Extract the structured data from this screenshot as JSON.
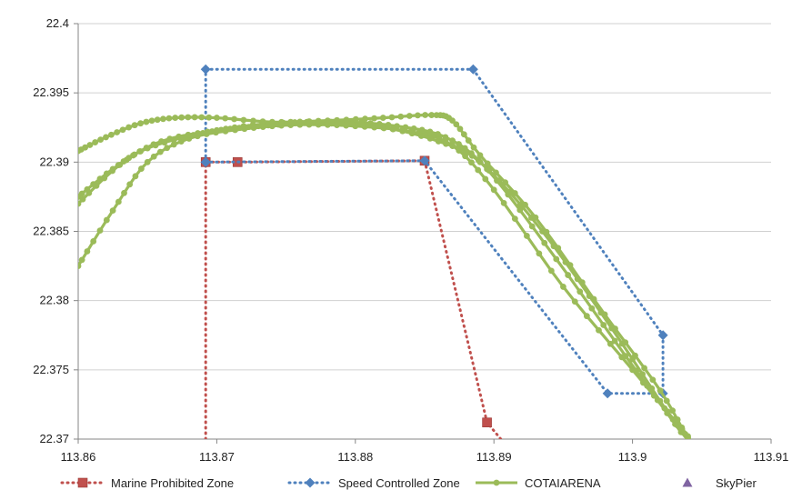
{
  "chart_data": {
    "type": "line",
    "title": "",
    "xlabel": "",
    "ylabel": "",
    "xlim": [
      113.86,
      113.91
    ],
    "ylim": [
      22.37,
      22.4
    ],
    "x_ticks": [
      113.86,
      113.87,
      113.88,
      113.89,
      113.9,
      113.91
    ],
    "x_tick_labels": [
      "113.86",
      "113.87",
      "113.88",
      "113.89",
      "113.9",
      "113.91"
    ],
    "y_ticks": [
      22.37,
      22.375,
      22.38,
      22.385,
      22.39,
      22.395,
      22.4
    ],
    "y_tick_labels": [
      "22.37",
      "22.375",
      "22.38",
      "22.385",
      "22.39",
      "22.395",
      "22.4"
    ],
    "grid": "horizontal",
    "legend_position": "bottom",
    "series": [
      {
        "name": "Marine Prohibited Zone",
        "color": "#c0504d",
        "line": "dotted",
        "marker": "square",
        "points": [
          [
            113.8692,
            22.37
          ],
          [
            113.8692,
            22.39
          ],
          [
            113.8715,
            22.39
          ],
          [
            113.885,
            22.3901
          ],
          [
            113.8895,
            22.3712
          ],
          [
            113.8905,
            22.37
          ]
        ],
        "marker_points": [
          [
            113.8692,
            22.39
          ],
          [
            113.8715,
            22.39
          ],
          [
            113.885,
            22.3901
          ],
          [
            113.8895,
            22.3712
          ]
        ]
      },
      {
        "name": "Speed Controlled Zone",
        "color": "#4f81bd",
        "line": "dotted",
        "marker": "diamond",
        "points": [
          [
            113.8692,
            22.39
          ],
          [
            113.8692,
            22.3967
          ],
          [
            113.8885,
            22.3967
          ],
          [
            113.9022,
            22.3775
          ],
          [
            113.9022,
            22.3733
          ],
          [
            113.8982,
            22.3733
          ],
          [
            113.885,
            22.3901
          ],
          [
            113.8692,
            22.39
          ]
        ]
      },
      {
        "name": "COTAIARENA",
        "color": "#9bbb59",
        "line": "solid",
        "marker": "circle",
        "tracks": [
          [
            [
              113.86,
              22.3825
            ],
            [
              113.8625,
              22.3865
            ],
            [
              113.865,
              22.39
            ],
            [
              113.868,
              22.3917
            ],
            [
              113.872,
              22.3924
            ],
            [
              113.876,
              22.3927
            ],
            [
              113.88,
              22.3926
            ],
            [
              113.884,
              22.3922
            ],
            [
              113.887,
              22.3912
            ],
            [
              113.89,
              22.388
            ],
            [
              113.895,
              22.381
            ],
            [
              113.9,
              22.375
            ],
            [
              113.904,
              22.3702
            ]
          ],
          [
            [
              113.86,
              22.387
            ],
            [
              113.863,
              22.3898
            ],
            [
              113.866,
              22.3915
            ],
            [
              113.87,
              22.3923
            ],
            [
              113.874,
              22.3928
            ],
            [
              113.879,
              22.3929
            ],
            [
              113.883,
              22.3926
            ],
            [
              113.8865,
              22.3918
            ],
            [
              113.8895,
              22.3895
            ],
            [
              113.8945,
              22.383
            ],
            [
              113.8995,
              22.376
            ],
            [
              113.9035,
              22.3705
            ]
          ],
          [
            [
              113.86,
              22.3875
            ],
            [
              113.8625,
              22.3895
            ],
            [
              113.865,
              22.391
            ],
            [
              113.869,
              22.3921
            ],
            [
              113.873,
              22.3926
            ],
            [
              113.8775,
              22.3928
            ],
            [
              113.882,
              22.3925
            ],
            [
              113.886,
              22.3915
            ],
            [
              113.889,
              22.39
            ],
            [
              113.8935,
              22.385
            ],
            [
              113.8985,
              22.378
            ],
            [
              113.9025,
              22.372
            ],
            [
              113.904,
              22.3701
            ]
          ],
          [
            [
              113.86,
              22.3908
            ],
            [
              113.862,
              22.3918
            ],
            [
              113.8645,
              22.3928
            ],
            [
              113.867,
              22.3932
            ],
            [
              113.87,
              22.3932
            ],
            [
              113.874,
              22.3929
            ],
            [
              113.878,
              22.393
            ],
            [
              113.882,
              22.3932
            ],
            [
              113.8855,
              22.3934
            ],
            [
              113.887,
              22.393
            ],
            [
              113.889,
              22.3905
            ],
            [
              113.893,
              22.386
            ],
            [
              113.898,
              22.379
            ],
            [
              113.902,
              22.3735
            ],
            [
              113.904,
              22.37
            ]
          ]
        ]
      },
      {
        "name": "SkyPier",
        "color": "#8064a2",
        "line": "none",
        "marker": "triangle",
        "points": []
      }
    ]
  }
}
